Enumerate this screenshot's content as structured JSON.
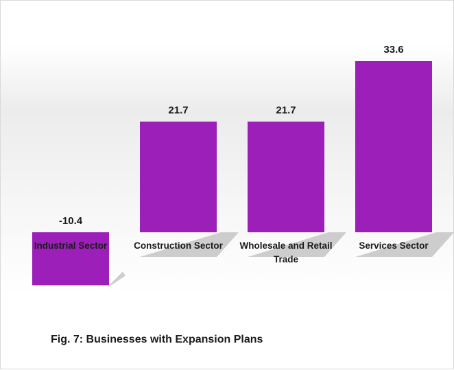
{
  "chart_data": {
    "type": "bar",
    "categories": [
      "Industrial Sector",
      "Construction Sector",
      "Wholesale and Retail Trade",
      "Services Sector"
    ],
    "category_lines": [
      [
        "Industrial Sector"
      ],
      [
        "Construction Sector"
      ],
      [
        "Wholesale and Retail",
        "Trade"
      ],
      [
        "Services Sector"
      ]
    ],
    "values": [
      -10.4,
      21.7,
      21.7,
      33.6
    ],
    "value_labels": [
      "-10.4",
      "21.7",
      "21.7",
      "33.6"
    ],
    "bar_color": "#9b1fb8",
    "shadow_color": "#bdbdbd",
    "ylim": [
      -10.4,
      33.6
    ],
    "grid": false,
    "legend": "none"
  },
  "caption": "Fig. 7: Businesses with Expansion Plans"
}
